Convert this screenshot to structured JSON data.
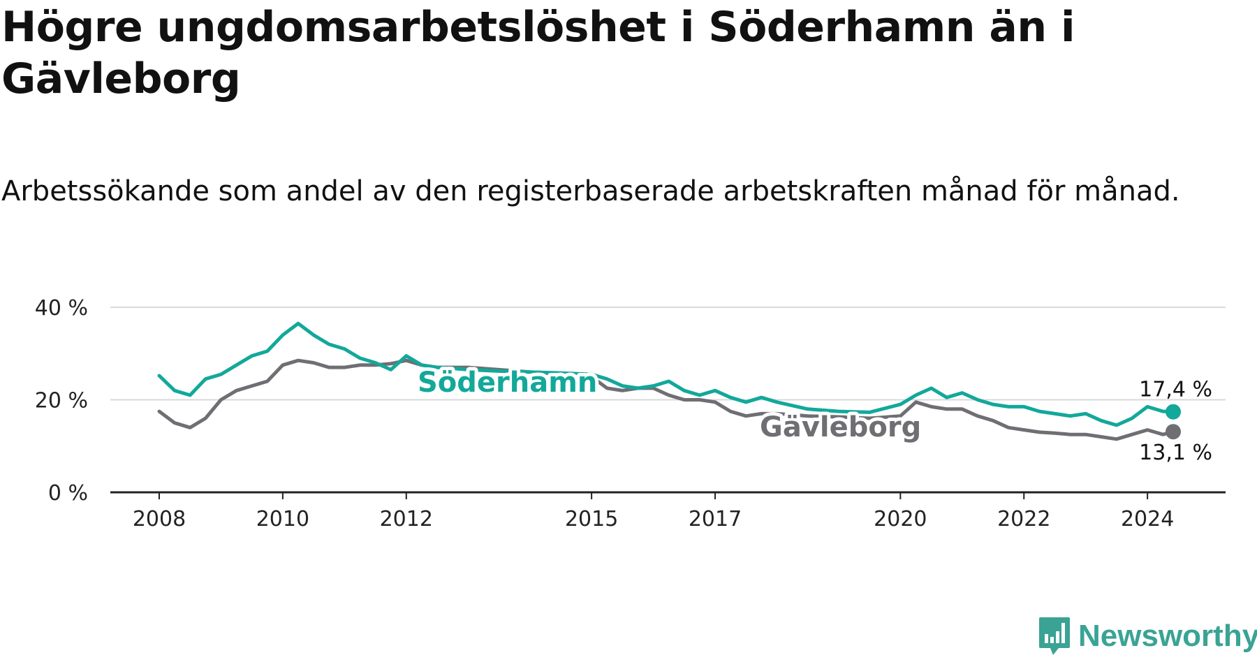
{
  "header": {
    "title": "Högre ungdomsarbetslöshet i Söderhamn än i Gävleborg",
    "subtitle": "Arbetssökande som andel av den registerbaserade arbetskraften månad för månad."
  },
  "brand": {
    "name": "Newsworthy",
    "icon": "newsworthy-logo-icon",
    "color": "#3aa394"
  },
  "colors": {
    "soderhamn": "#12a89a",
    "gavleborg": "#6f6e73",
    "grid": "#d9d9d9",
    "axis": "#222222"
  },
  "chart_data": {
    "type": "line",
    "title": "Högre ungdomsarbetslöshet i Söderhamn än i Gävleborg",
    "subtitle": "Arbetssökande som andel av den registerbaserade arbetskraften månad för månad.",
    "xlabel": "",
    "ylabel": "",
    "xlim": [
      "2008-01",
      "2024-06"
    ],
    "ylim": [
      0,
      40
    ],
    "y_ticks": [
      0,
      20,
      40
    ],
    "y_tick_labels": [
      "0 %",
      "20 %",
      "40 %"
    ],
    "x_ticks": [
      "2008-01",
      "2010-01",
      "2012-01",
      "2015-01",
      "2017-01",
      "2020-01",
      "2022-01",
      "2024-01"
    ],
    "x_tick_labels": [
      "2008",
      "2010",
      "2012",
      "2015",
      "2017",
      "2020",
      "2022",
      "2024"
    ],
    "grid": true,
    "legend": "inline labels",
    "series": [
      {
        "name": "Söderhamn",
        "color": "#12a89a",
        "points": [
          [
            "2008-01",
            25.2
          ],
          [
            "2008-04",
            22
          ],
          [
            "2008-07",
            21
          ],
          [
            "2008-10",
            24.5
          ],
          [
            "2009-01",
            25.5
          ],
          [
            "2009-04",
            27.5
          ],
          [
            "2009-07",
            29.5
          ],
          [
            "2009-10",
            30.5
          ],
          [
            "2010-01",
            34
          ],
          [
            "2010-04",
            36.5
          ],
          [
            "2010-07",
            34
          ],
          [
            "2010-10",
            32
          ],
          [
            "2011-01",
            31
          ],
          [
            "2011-04",
            29
          ],
          [
            "2011-07",
            28
          ],
          [
            "2011-10",
            26.5
          ],
          [
            "2012-01",
            29.5
          ],
          [
            "2012-04",
            27.5
          ],
          [
            "2012-07",
            27
          ],
          [
            "2012-10",
            26.8
          ],
          [
            "2013-01",
            26.5
          ],
          [
            "2013-07",
            26.2
          ],
          [
            "2014-01",
            26
          ],
          [
            "2014-07",
            25.8
          ],
          [
            "2015-01",
            25.5
          ],
          [
            "2015-04",
            24.5
          ],
          [
            "2015-07",
            23
          ],
          [
            "2015-10",
            22.5
          ],
          [
            "2016-01",
            23
          ],
          [
            "2016-04",
            24
          ],
          [
            "2016-07",
            22
          ],
          [
            "2016-10",
            21
          ],
          [
            "2017-01",
            22
          ],
          [
            "2017-04",
            20.5
          ],
          [
            "2017-07",
            19.5
          ],
          [
            "2017-10",
            20.5
          ],
          [
            "2018-01",
            19.5
          ],
          [
            "2018-07",
            18
          ],
          [
            "2019-01",
            17.5
          ],
          [
            "2019-07",
            17.3
          ],
          [
            "2020-01",
            19
          ],
          [
            "2020-04",
            21
          ],
          [
            "2020-07",
            22.5
          ],
          [
            "2020-10",
            20.5
          ],
          [
            "2021-01",
            21.5
          ],
          [
            "2021-04",
            20
          ],
          [
            "2021-07",
            19
          ],
          [
            "2021-10",
            18.5
          ],
          [
            "2022-01",
            18.5
          ],
          [
            "2022-04",
            17.5
          ],
          [
            "2022-07",
            17
          ],
          [
            "2022-10",
            16.5
          ],
          [
            "2023-01",
            17
          ],
          [
            "2023-04",
            15.5
          ],
          [
            "2023-07",
            14.5
          ],
          [
            "2023-10",
            16
          ],
          [
            "2024-01",
            18.5
          ],
          [
            "2024-04",
            17.5
          ],
          [
            "2024-06",
            17.4
          ]
        ],
        "end_label": "17,4 %"
      },
      {
        "name": "Gävleborg",
        "color": "#6f6e73",
        "points": [
          [
            "2008-01",
            17.5
          ],
          [
            "2008-04",
            15
          ],
          [
            "2008-07",
            14
          ],
          [
            "2008-10",
            16
          ],
          [
            "2009-01",
            20
          ],
          [
            "2009-04",
            22
          ],
          [
            "2009-07",
            23
          ],
          [
            "2009-10",
            24
          ],
          [
            "2010-01",
            27.5
          ],
          [
            "2010-04",
            28.5
          ],
          [
            "2010-07",
            28
          ],
          [
            "2010-10",
            27
          ],
          [
            "2011-01",
            27
          ],
          [
            "2011-04",
            27.5
          ],
          [
            "2011-07",
            27.5
          ],
          [
            "2011-10",
            27.8
          ],
          [
            "2012-01",
            28.5
          ],
          [
            "2012-04",
            27.5
          ],
          [
            "2012-07",
            27
          ],
          [
            "2012-10",
            27
          ],
          [
            "2013-01",
            27
          ],
          [
            "2013-07",
            26.5
          ],
          [
            "2014-01",
            26
          ],
          [
            "2014-07",
            25.5
          ],
          [
            "2015-01",
            25
          ],
          [
            "2015-04",
            22.5
          ],
          [
            "2015-07",
            22
          ],
          [
            "2015-10",
            22.5
          ],
          [
            "2016-01",
            22.5
          ],
          [
            "2016-04",
            21
          ],
          [
            "2016-07",
            20
          ],
          [
            "2016-10",
            20
          ],
          [
            "2017-01",
            19.5
          ],
          [
            "2017-04",
            17.5
          ],
          [
            "2017-07",
            16.5
          ],
          [
            "2017-10",
            17
          ],
          [
            "2018-01",
            17
          ],
          [
            "2018-07",
            16.5
          ],
          [
            "2019-01",
            16.3
          ],
          [
            "2019-07",
            16
          ],
          [
            "2020-01",
            16.5
          ],
          [
            "2020-04",
            19.5
          ],
          [
            "2020-07",
            18.5
          ],
          [
            "2020-10",
            18
          ],
          [
            "2021-01",
            18
          ],
          [
            "2021-04",
            16.5
          ],
          [
            "2021-07",
            15.5
          ],
          [
            "2021-10",
            14
          ],
          [
            "2022-01",
            13.5
          ],
          [
            "2022-04",
            13
          ],
          [
            "2022-07",
            12.8
          ],
          [
            "2022-10",
            12.5
          ],
          [
            "2023-01",
            12.5
          ],
          [
            "2023-04",
            12
          ],
          [
            "2023-07",
            11.5
          ],
          [
            "2023-10",
            12.5
          ],
          [
            "2024-01",
            13.5
          ],
          [
            "2024-04",
            12.5
          ],
          [
            "2024-06",
            13.1
          ]
        ],
        "end_label": "13,1 %"
      }
    ]
  }
}
